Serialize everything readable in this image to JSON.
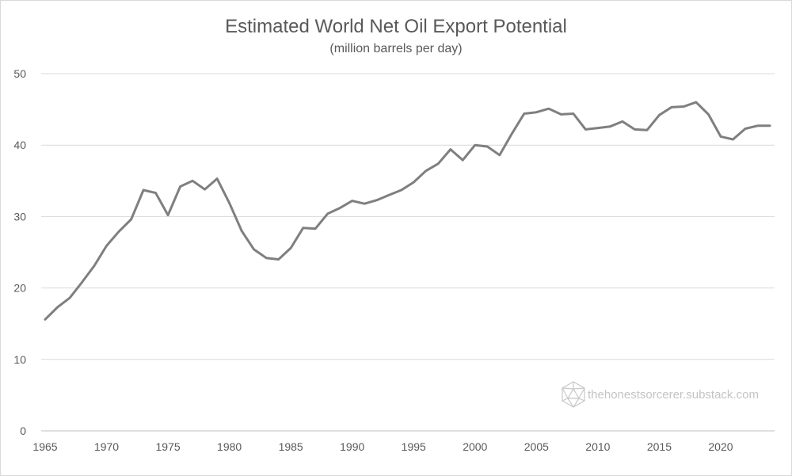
{
  "chart_data": {
    "type": "line",
    "title": "Estimated World Net Oil Export Potential",
    "subtitle": "(million barrels per day)",
    "xlabel": "",
    "ylabel": "",
    "ylim": [
      0,
      50
    ],
    "yticks": [
      0,
      10,
      20,
      30,
      40,
      50
    ],
    "xlim": [
      1965,
      2024
    ],
    "xticks": [
      1965,
      1970,
      1975,
      1980,
      1985,
      1990,
      1995,
      2000,
      2005,
      2010,
      2015,
      2020
    ],
    "grid": "horizontal",
    "legend": "none",
    "series": [
      {
        "name": "Estimated World Net Oil Export Potential",
        "color": "#7f7f7f",
        "x": [
          1965,
          1966,
          1967,
          1968,
          1969,
          1970,
          1971,
          1972,
          1973,
          1974,
          1975,
          1976,
          1977,
          1978,
          1979,
          1980,
          1981,
          1982,
          1983,
          1984,
          1985,
          1986,
          1987,
          1988,
          1989,
          1990,
          1991,
          1992,
          1993,
          1994,
          1995,
          1996,
          1997,
          1998,
          1999,
          2000,
          2001,
          2002,
          2003,
          2004,
          2005,
          2006,
          2007,
          2008,
          2009,
          2010,
          2011,
          2012,
          2013,
          2014,
          2015,
          2016,
          2017,
          2018,
          2019,
          2020,
          2021,
          2022,
          2023,
          2024
        ],
        "values": [
          15.6,
          17.3,
          18.6,
          20.8,
          23.1,
          25.9,
          27.9,
          29.6,
          33.7,
          33.3,
          30.2,
          34.2,
          35.0,
          33.8,
          35.3,
          31.9,
          28.0,
          25.4,
          24.2,
          24.0,
          25.6,
          28.4,
          28.3,
          30.4,
          31.2,
          32.2,
          31.8,
          32.3,
          33.0,
          33.7,
          34.8,
          36.4,
          37.4,
          39.4,
          37.9,
          40.0,
          39.8,
          38.6,
          41.6,
          44.4,
          44.6,
          45.1,
          44.3,
          44.4,
          42.2,
          42.4,
          42.6,
          43.3,
          42.2,
          42.1,
          44.2,
          45.3,
          45.4,
          46.0,
          44.3,
          41.2,
          40.8,
          42.3,
          42.7,
          42.7
        ]
      }
    ]
  },
  "watermark": {
    "text": "thehonestsorcerer.substack.com",
    "icon": "icosahedron-icon"
  }
}
